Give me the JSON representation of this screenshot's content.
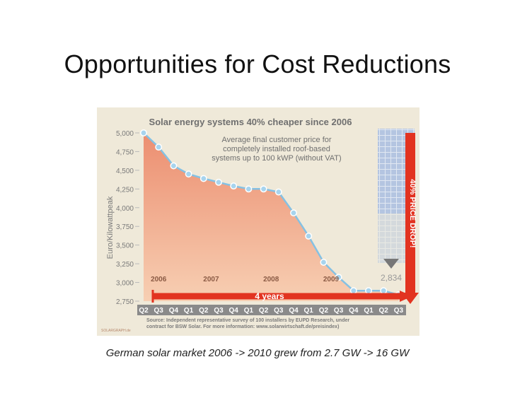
{
  "slide": {
    "title": "Opportunities for Cost Reductions",
    "caption": "German solar market 2006 -> 2010 grew from 2.7 GW -> 16 GW"
  },
  "chart_data": {
    "type": "area",
    "title": "Solar energy systems 40% cheaper since 2006",
    "annotation": [
      "Average final customer price for",
      "completely installed roof-based",
      "systems up to 100 kWP (without VAT)"
    ],
    "ylabel": "Euro/Kilowattpeak",
    "ylim": [
      2750,
      5000
    ],
    "yticks": [
      5000,
      4750,
      4500,
      4250,
      4000,
      3750,
      3500,
      3250,
      3000,
      2750
    ],
    "ytick_labels": [
      "5,000",
      "4,750",
      "4,500",
      "4,250",
      "4,000",
      "3,750",
      "3,500",
      "3,250",
      "3,000",
      "2,750"
    ],
    "categories": [
      "Q2",
      "Q3",
      "Q4",
      "Q1",
      "Q2",
      "Q3",
      "Q4",
      "Q1",
      "Q2",
      "Q3",
      "Q4",
      "Q1",
      "Q2",
      "Q3",
      "Q4",
      "Q1",
      "Q2",
      "Q3"
    ],
    "years": [
      "2006",
      "2007",
      "2008",
      "2009"
    ],
    "year_spans": [
      [
        0,
        2
      ],
      [
        3,
        6
      ],
      [
        7,
        10
      ],
      [
        11,
        14
      ]
    ],
    "values": [
      5000,
      4810,
      4560,
      4450,
      4390,
      4340,
      4290,
      4250,
      4250,
      4210,
      3930,
      3620,
      3270,
      3070,
      2890,
      2890,
      2890,
      2834
    ],
    "end_label": "2,834",
    "arrow_label": "4 years",
    "price_drop_label": "40% PRICE DROP!",
    "source": [
      "Source: Independent representative survey of 100 installers by EUPD Research, under",
      "contract for BSW Solar. For more information: www.solarwirtschaft.de/preisindex)"
    ],
    "credit": "SOLARGRAPH.de",
    "colors": {
      "panel": "#efe9d9",
      "area_top": "#ec8e70",
      "area_bottom": "#f7cfb3",
      "line": "#85c1e3",
      "marker": "#a7d4ee",
      "title_text": "#6f6f6f",
      "axis_text": "#7a7a7a",
      "xlabel_bar": "#8a8a8a",
      "red": "#e23320",
      "triangle": "#777777",
      "panel_image": "#c3d3ec"
    }
  }
}
